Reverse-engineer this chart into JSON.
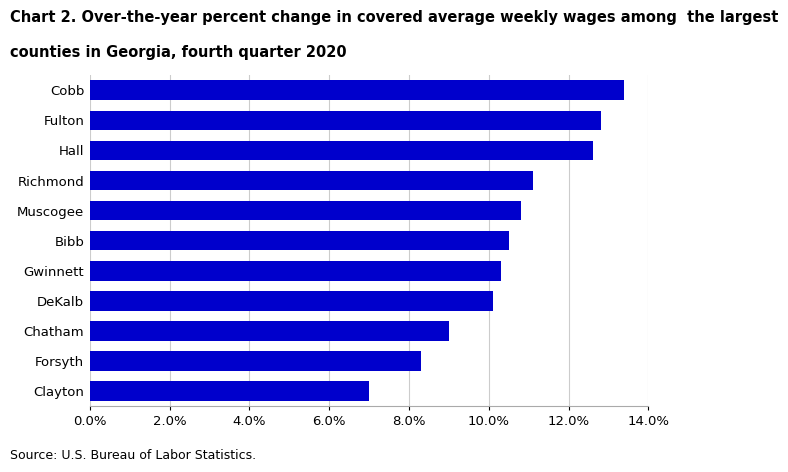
{
  "title_line1": "Chart 2. Over-the-year percent change in covered average weekly wages among  the largest",
  "title_line2": "counties in Georgia, fourth quarter 2020",
  "categories": [
    "Cobb",
    "Fulton",
    "Hall",
    "Richmond",
    "Muscogee",
    "Bibb",
    "Gwinnett",
    "DeKalb",
    "Chatham",
    "Forsyth",
    "Clayton"
  ],
  "values": [
    0.134,
    0.128,
    0.126,
    0.111,
    0.108,
    0.105,
    0.103,
    0.101,
    0.09,
    0.083,
    0.07
  ],
  "bar_color": "#0000cc",
  "xlim": [
    0,
    0.14
  ],
  "xtick_values": [
    0.0,
    0.02,
    0.04,
    0.06,
    0.08,
    0.1,
    0.12,
    0.14
  ],
  "source_text": "Source: U.S. Bureau of Labor Statistics.",
  "title_fontsize": 10.5,
  "tick_fontsize": 9.5,
  "source_fontsize": 9,
  "background_color": "#ffffff"
}
